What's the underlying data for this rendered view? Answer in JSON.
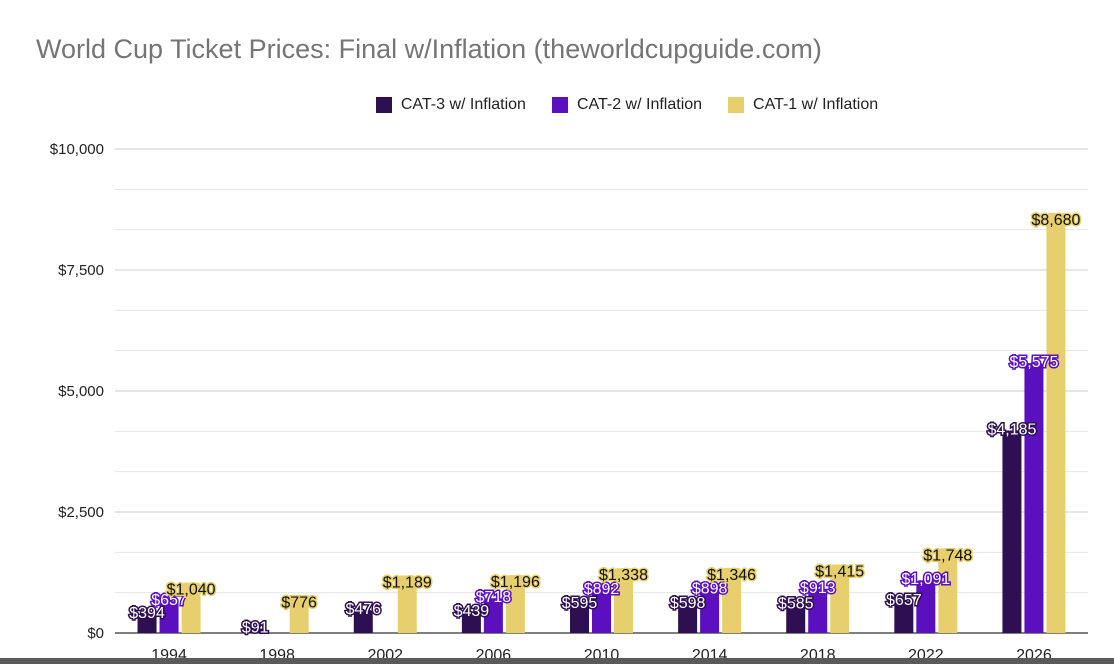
{
  "chart_data": {
    "type": "bar",
    "title": "World Cup Ticket Prices: Final w/Inflation (theworldcupguide.com)",
    "xlabel": "",
    "ylabel": "",
    "categories": [
      "1994",
      "1998",
      "2002",
      "2006",
      "2010",
      "2014",
      "2018",
      "2022",
      "2026"
    ],
    "series": [
      {
        "name": "CAT-3 w/ Inflation",
        "color": "#2d0f52",
        "values": [
          394,
          91,
          476,
          439,
          595,
          598,
          585,
          657,
          4185
        ],
        "labels": [
          "$394",
          "$91",
          "$476",
          "$439",
          "$595",
          "$598",
          "$585",
          "$657",
          "$4,185"
        ]
      },
      {
        "name": "CAT-2 w/ Inflation",
        "color": "#5b0fbe",
        "values": [
          657,
          null,
          null,
          718,
          892,
          898,
          913,
          1091,
          5575
        ],
        "labels": [
          "$657",
          "",
          "",
          "$718",
          "$892",
          "$898",
          "$913",
          "$1,091",
          "$5,575"
        ]
      },
      {
        "name": "CAT-1 w/ Inflation",
        "color": "#e8cf6e",
        "values": [
          1040,
          776,
          1189,
          1196,
          1338,
          1346,
          1415,
          1748,
          8680
        ],
        "labels": [
          "$1,040",
          "$776",
          "$1,189",
          "$1,196",
          "$1,338",
          "$1,346",
          "$1,415",
          "$1,748",
          "$8,680"
        ]
      }
    ],
    "ylim": [
      0,
      10000
    ],
    "yticks": [
      0,
      2500,
      5000,
      7500,
      10000
    ],
    "ytick_labels": [
      "$0",
      "$2,500",
      "$5,000",
      "$7,500",
      "$10,000"
    ],
    "grid": true,
    "legend_position": "top"
  }
}
